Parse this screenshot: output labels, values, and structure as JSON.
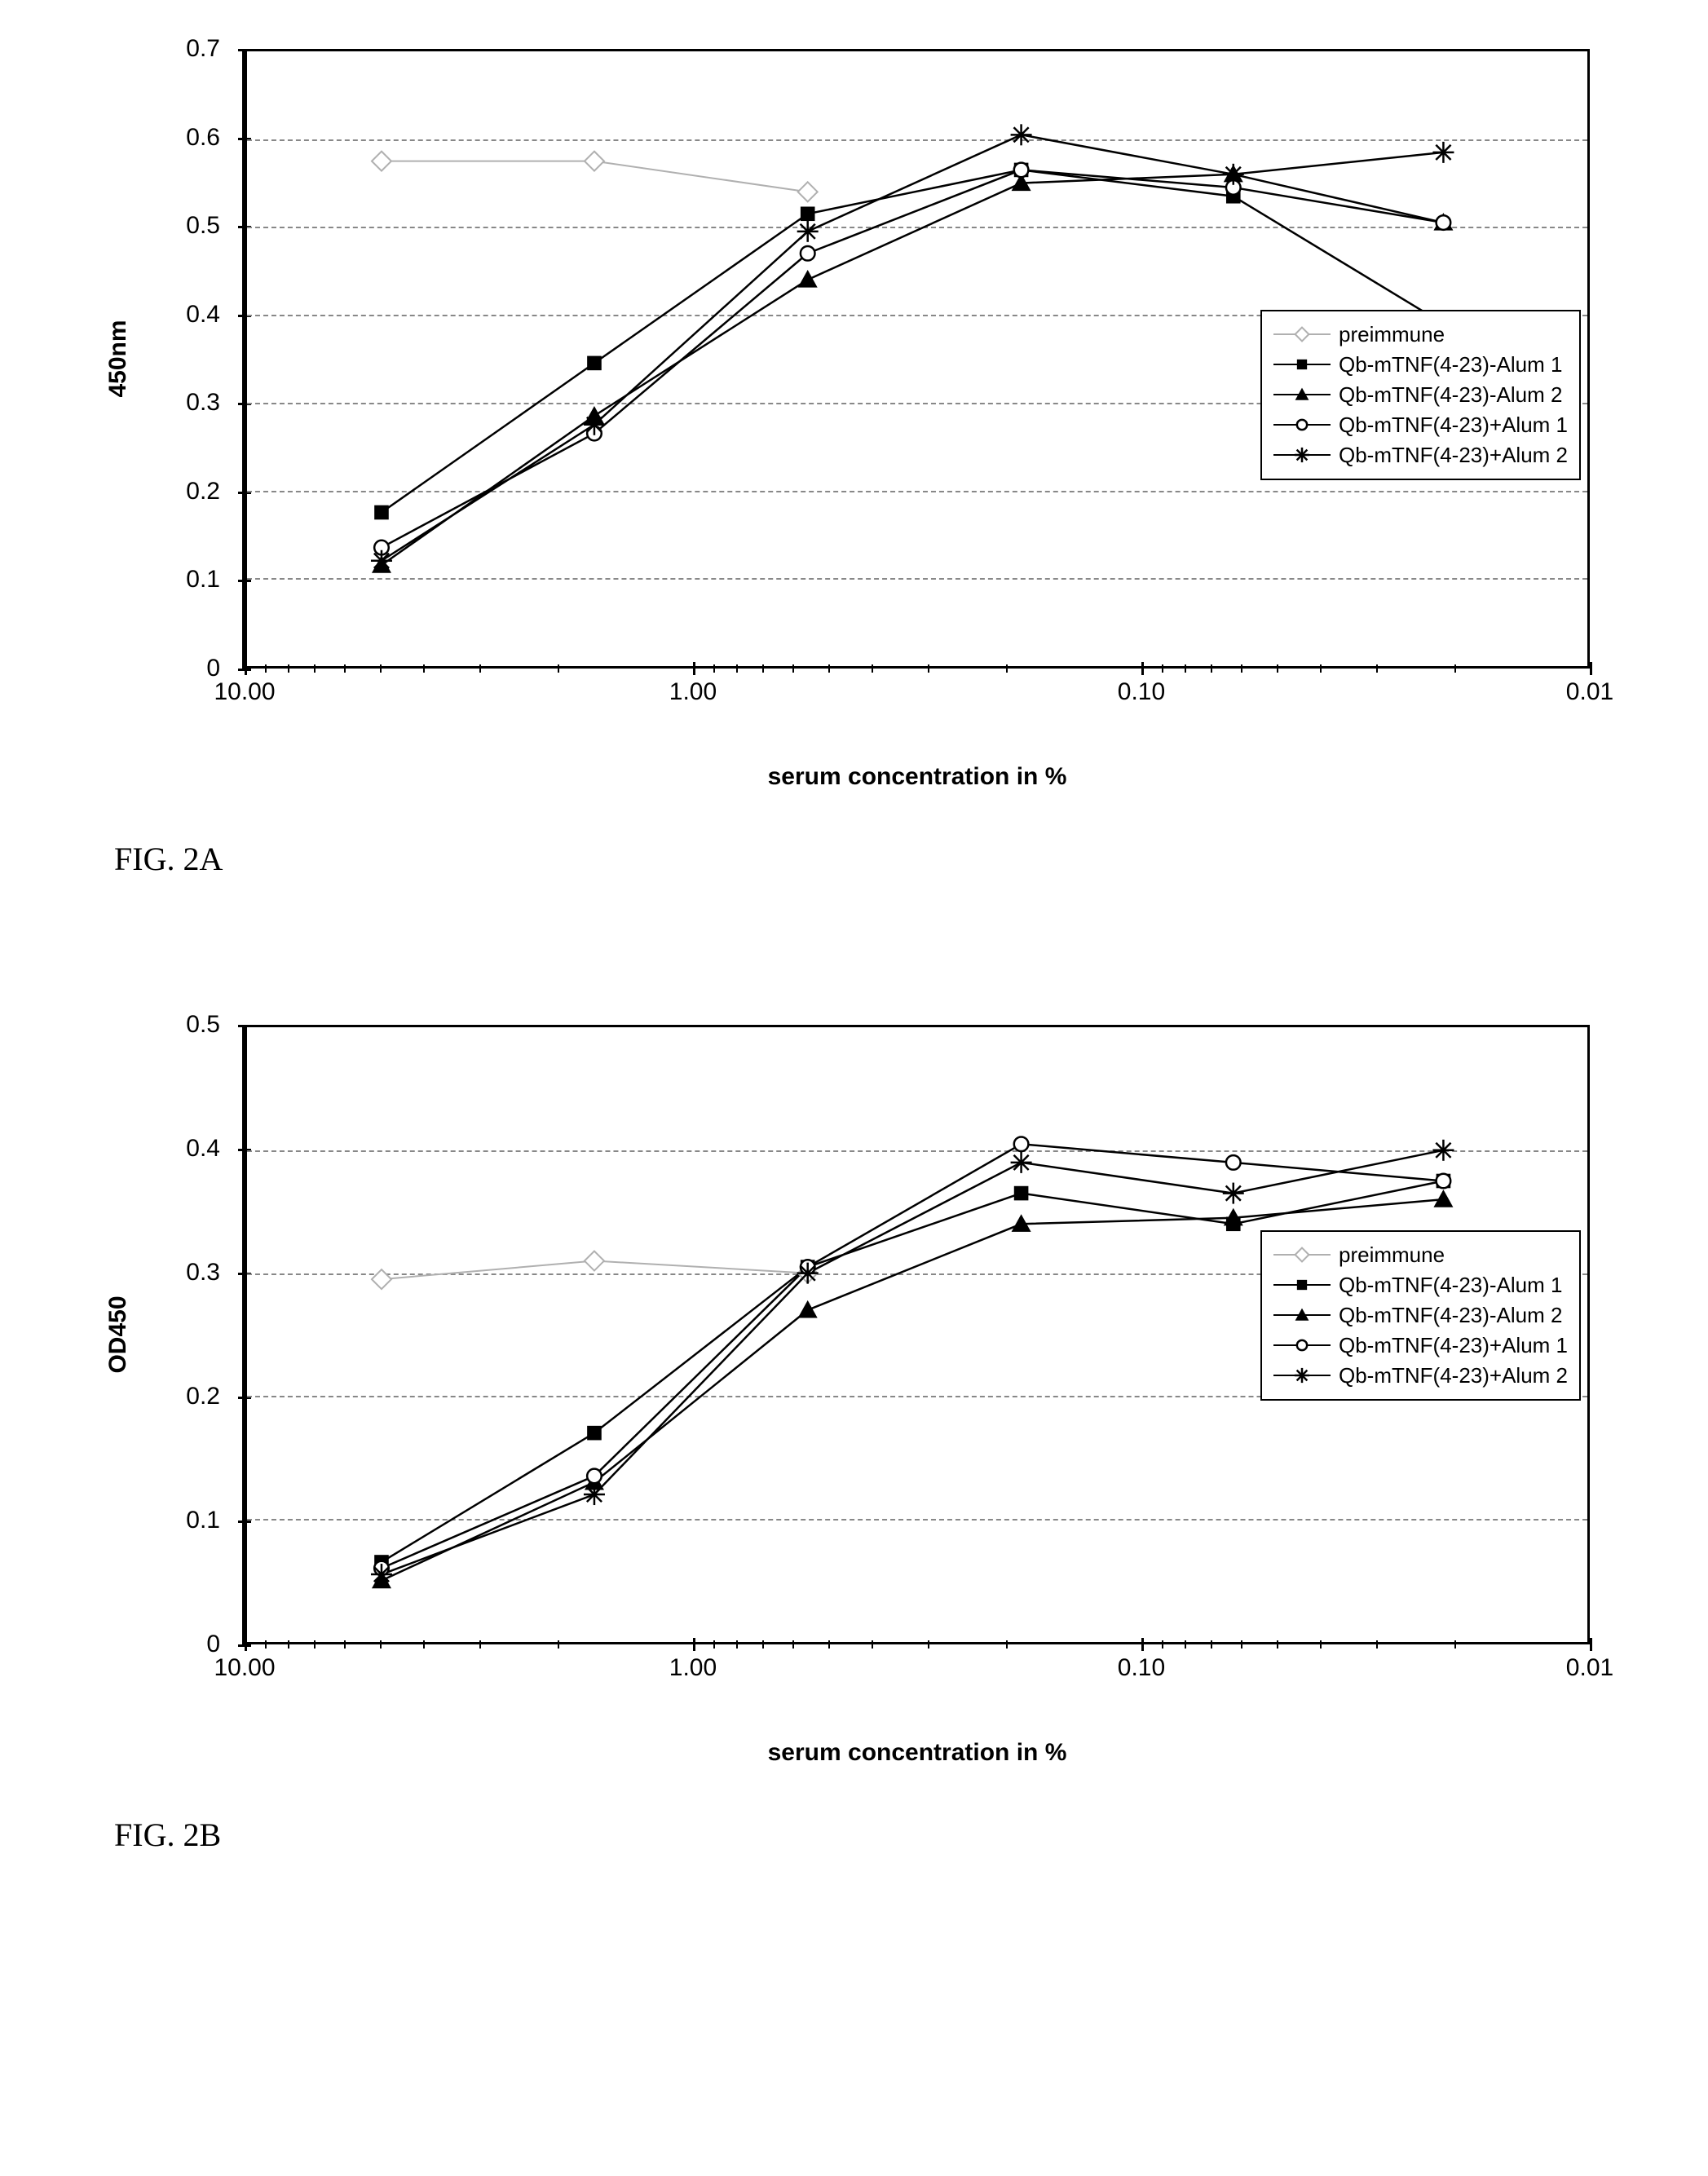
{
  "figures": [
    {
      "caption": "FIG. 2A",
      "type": "line",
      "chart": {
        "background_color": "#ffffff",
        "border_color": "#000000",
        "grid_color": "#888888",
        "grid_style": "dashed",
        "xlabel": "serum concentration in %",
        "ylabel": "450nm",
        "label_fontsize": 30,
        "tick_fontsize": 30,
        "x_log": true,
        "x_reversed": true,
        "xlim_min": 0.01,
        "xlim_max": 10.0,
        "x_ticks": [
          10.0,
          1.0,
          0.1,
          0.01
        ],
        "x_tick_labels": [
          "10.00",
          "1.00",
          "0.10",
          "0.01"
        ],
        "ylim_min": 0,
        "ylim_max": 0.7,
        "y_ticks": [
          0,
          0.1,
          0.2,
          0.3,
          0.4,
          0.5,
          0.6,
          0.7
        ],
        "y_tick_labels": [
          "0",
          "0.1",
          "0.2",
          "0.3",
          "0.4",
          "0.5",
          "0.6",
          "0.7"
        ],
        "legend_top_pct": 42,
        "series_x": [
          5.0,
          1.67,
          0.556,
          0.185,
          0.062,
          0.021
        ],
        "series": [
          {
            "name": "preimmune",
            "marker": "diamond-open",
            "marker_size": 12,
            "line_color": "#b0b0b0",
            "line_width": 2,
            "x": [
              5.0,
              1.67,
              0.556
            ],
            "y": [
              0.575,
              0.575,
              0.54
            ]
          },
          {
            "name": "Qb-mTNF(4-23)-Alum 1",
            "marker": "square-filled",
            "marker_size": 11,
            "line_color": "#000000",
            "line_width": 2.5,
            "x": [
              5.0,
              1.67,
              0.556,
              0.185,
              0.062,
              0.021
            ],
            "y": [
              0.175,
              0.345,
              0.515,
              0.565,
              0.535,
              0.39
            ]
          },
          {
            "name": "Qb-mTNF(4-23)-Alum 2",
            "marker": "triangle-filled",
            "marker_size": 12,
            "line_color": "#000000",
            "line_width": 2.5,
            "x": [
              5.0,
              1.67,
              0.556,
              0.185,
              0.062,
              0.021
            ],
            "y": [
              0.115,
              0.285,
              0.44,
              0.55,
              0.56,
              0.505
            ]
          },
          {
            "name": "Qb-mTNF(4-23)+Alum 1",
            "marker": "circle-open",
            "marker_size": 11,
            "line_color": "#000000",
            "line_width": 2.5,
            "x": [
              5.0,
              1.67,
              0.556,
              0.185,
              0.062,
              0.021
            ],
            "y": [
              0.135,
              0.265,
              0.47,
              0.565,
              0.545,
              0.505
            ]
          },
          {
            "name": "Qb-mTNF(4-23)+Alum 2",
            "marker": "asterisk",
            "marker_size": 13,
            "line_color": "#000000",
            "line_width": 2.5,
            "x": [
              5.0,
              1.67,
              0.556,
              0.185,
              0.062,
              0.021
            ],
            "y": [
              0.12,
              0.275,
              0.495,
              0.605,
              0.56,
              0.585
            ]
          }
        ]
      }
    },
    {
      "caption": "FIG. 2B",
      "type": "line",
      "chart": {
        "background_color": "#ffffff",
        "border_color": "#000000",
        "grid_color": "#888888",
        "grid_style": "dashed",
        "xlabel": "serum concentration in %",
        "ylabel": "OD450",
        "label_fontsize": 30,
        "tick_fontsize": 30,
        "x_log": true,
        "x_reversed": true,
        "xlim_min": 0.01,
        "xlim_max": 10.0,
        "x_ticks": [
          10.0,
          1.0,
          0.1,
          0.01
        ],
        "x_tick_labels": [
          "10.00",
          "1.00",
          "0.10",
          "0.01"
        ],
        "ylim_min": 0,
        "ylim_max": 0.5,
        "y_ticks": [
          0,
          0.1,
          0.2,
          0.3,
          0.4,
          0.5
        ],
        "y_tick_labels": [
          "0",
          "0.1",
          "0.2",
          "0.3",
          "0.4",
          "0.5"
        ],
        "legend_top_pct": 33,
        "series_x": [
          5.0,
          1.67,
          0.556,
          0.185,
          0.062,
          0.021
        ],
        "series": [
          {
            "name": "preimmune",
            "marker": "diamond-open",
            "marker_size": 12,
            "line_color": "#b0b0b0",
            "line_width": 2,
            "x": [
              5.0,
              1.67,
              0.556
            ],
            "y": [
              0.295,
              0.31,
              0.3
            ]
          },
          {
            "name": "Qb-mTNF(4-23)-Alum 1",
            "marker": "square-filled",
            "marker_size": 11,
            "line_color": "#000000",
            "line_width": 2.5,
            "x": [
              5.0,
              1.67,
              0.556,
              0.185,
              0.062,
              0.021
            ],
            "y": [
              0.065,
              0.17,
              0.305,
              0.365,
              0.34,
              0.375
            ]
          },
          {
            "name": "Qb-mTNF(4-23)-Alum 2",
            "marker": "triangle-filled",
            "marker_size": 12,
            "line_color": "#000000",
            "line_width": 2.5,
            "x": [
              5.0,
              1.67,
              0.556,
              0.185,
              0.062,
              0.021
            ],
            "y": [
              0.05,
              0.13,
              0.27,
              0.34,
              0.345,
              0.36
            ]
          },
          {
            "name": "Qb-mTNF(4-23)+Alum 1",
            "marker": "circle-open",
            "marker_size": 11,
            "line_color": "#000000",
            "line_width": 2.5,
            "x": [
              5.0,
              1.67,
              0.556,
              0.185,
              0.062,
              0.021
            ],
            "y": [
              0.06,
              0.135,
              0.305,
              0.405,
              0.39,
              0.375
            ]
          },
          {
            "name": "Qb-mTNF(4-23)+Alum 2",
            "marker": "asterisk",
            "marker_size": 13,
            "line_color": "#000000",
            "line_width": 2.5,
            "x": [
              5.0,
              1.67,
              0.556,
              0.185,
              0.062,
              0.021
            ],
            "y": [
              0.055,
              0.12,
              0.3,
              0.39,
              0.365,
              0.4
            ]
          }
        ]
      }
    }
  ]
}
